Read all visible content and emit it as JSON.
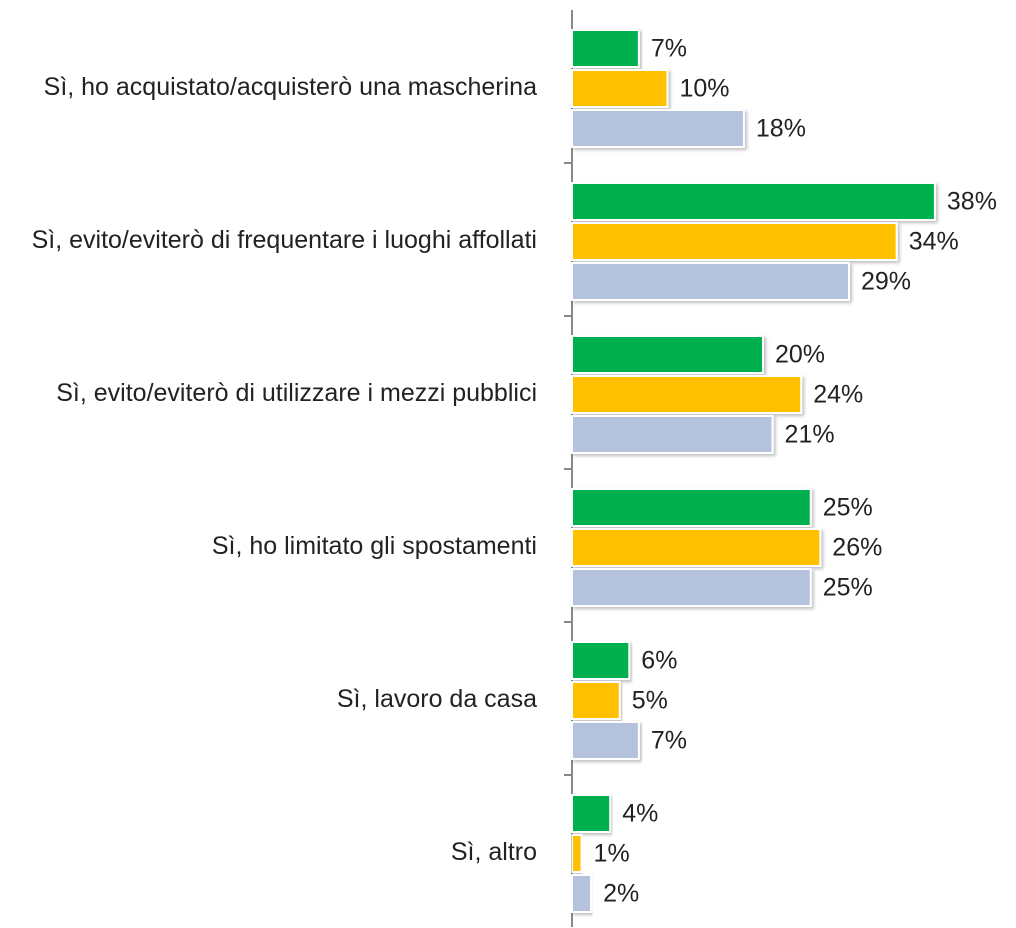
{
  "chart_data": {
    "type": "bar",
    "orientation": "horizontal",
    "categories": [
      "Sì, ho acquistato/acquisterò una mascherina",
      "Sì, evito/eviterò di frequentare i luoghi affollati",
      "Sì, evito/eviterò di utilizzare i mezzi pubblici",
      "Sì, ho limitato gli spostamenti",
      "Sì, lavoro da casa",
      "Sì, altro"
    ],
    "series": [
      {
        "color": "#00b050",
        "values": [
          7,
          38,
          20,
          25,
          6,
          4
        ],
        "value_labels": [
          "7%",
          "38%",
          "20%",
          "25%",
          "6%",
          "4%"
        ]
      },
      {
        "color": "#ffc000",
        "values": [
          10,
          34,
          24,
          26,
          5,
          1
        ],
        "value_labels": [
          "10%",
          "34%",
          "24%",
          "26%",
          "5%",
          "1%"
        ]
      },
      {
        "color": "#b4c2de",
        "values": [
          18,
          29,
          21,
          25,
          7,
          2
        ],
        "value_labels": [
          "18%",
          "29%",
          "21%",
          "25%",
          "7%",
          "2%"
        ]
      }
    ]
  }
}
